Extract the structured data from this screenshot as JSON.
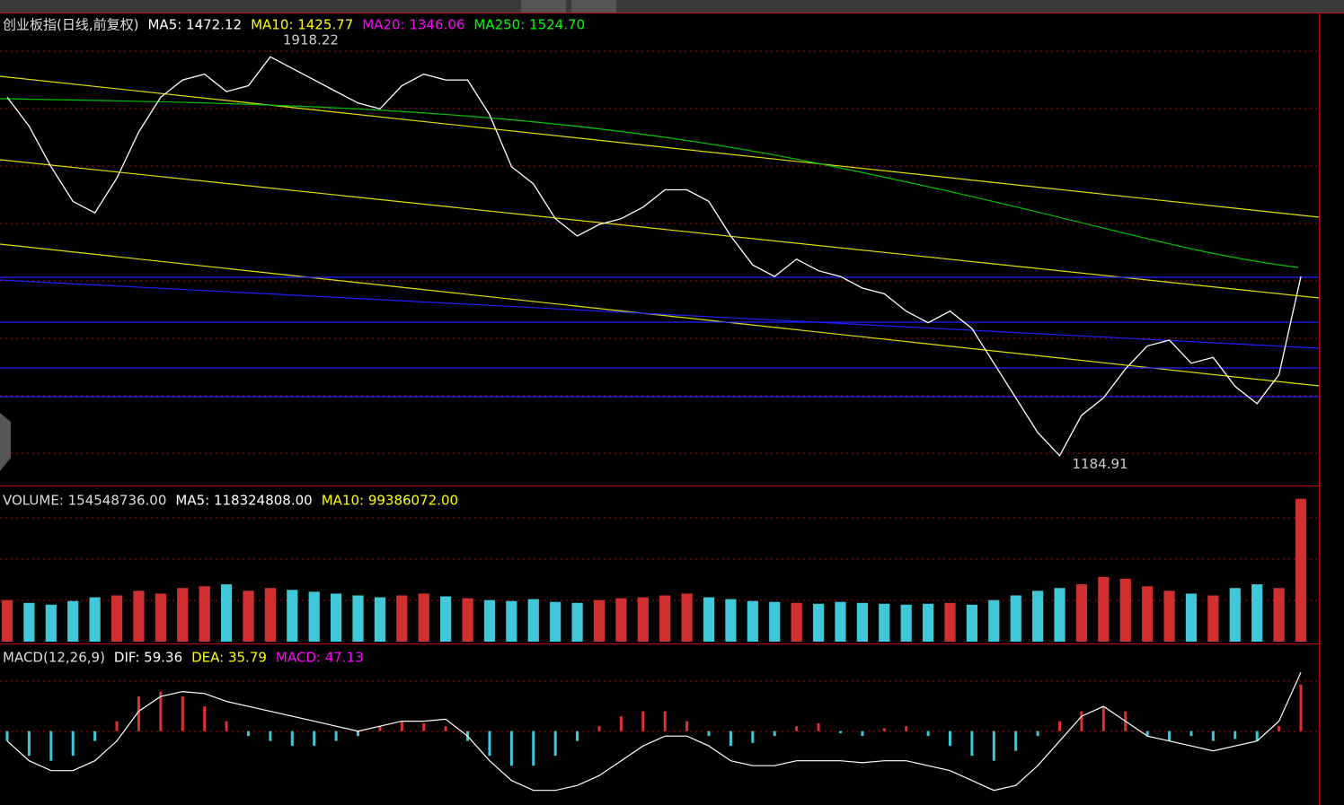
{
  "chart_data": [
    {
      "type": "line",
      "title": "创业板指(日线,前复权)",
      "legend": [
        {
          "text": "MA5: 1472.12",
          "color": "#ffffff"
        },
        {
          "text": "MA10: 1425.77",
          "color": "#ffff00"
        },
        {
          "text": "MA20: 1346.06",
          "color": "#ff00ff"
        },
        {
          "text": "MA250: 1524.70",
          "color": "#00ff00"
        }
      ],
      "high": 1918.22,
      "low": 1184.91,
      "values": [
        1820,
        1770,
        1700,
        1640,
        1620,
        1680,
        1760,
        1820,
        1850,
        1860,
        1830,
        1840,
        1890,
        1870,
        1850,
        1830,
        1810,
        1800,
        1840,
        1860,
        1850,
        1850,
        1790,
        1700,
        1670,
        1610,
        1580,
        1600,
        1610,
        1630,
        1660,
        1660,
        1640,
        1580,
        1530,
        1510,
        1540,
        1520,
        1510,
        1490,
        1480,
        1450,
        1430,
        1450,
        1420,
        1360,
        1300,
        1240,
        1200,
        1270,
        1300,
        1350,
        1390,
        1400,
        1360,
        1370,
        1320,
        1290,
        1340,
        1510
      ],
      "color": "#ffffff",
      "ylim": [
        1150,
        1965
      ]
    },
    {
      "type": "bar",
      "title": "VOLUME: 154548736.00",
      "legend": [
        {
          "text": "MA5: 118324808.00",
          "color": "#ffffff"
        },
        {
          "text": "MA10: 99386072.00",
          "color": "#ffff00"
        }
      ],
      "values": [
        45000000,
        42000000,
        40000000,
        44000000,
        48000000,
        50000000,
        55000000,
        52000000,
        58000000,
        60000000,
        62000000,
        55000000,
        58000000,
        56000000,
        54000000,
        52000000,
        50000000,
        48000000,
        50000000,
        52000000,
        49000000,
        47000000,
        45000000,
        44000000,
        46000000,
        43000000,
        42000000,
        45000000,
        47000000,
        48000000,
        50000000,
        52000000,
        48000000,
        46000000,
        44000000,
        43000000,
        42000000,
        41000000,
        43000000,
        42000000,
        41000000,
        40000000,
        41000000,
        42000000,
        40000000,
        45000000,
        50000000,
        55000000,
        58000000,
        62000000,
        70000000,
        68000000,
        60000000,
        55000000,
        52000000,
        50000000,
        58000000,
        62000000,
        58000000,
        154548736
      ],
      "ylim": [
        0,
        165000000
      ]
    },
    {
      "type": "macd",
      "title": "MACD(12,26,9)",
      "legend": [
        {
          "text": "DIF: 59.36",
          "color": "#ffffff"
        },
        {
          "text": "DEA: 35.79",
          "color": "#ffff00"
        },
        {
          "text": "MACD: 47.13",
          "color": "#ff00ff"
        }
      ],
      "values": [
        -10,
        -25,
        -30,
        -25,
        -10,
        10,
        35,
        40,
        35,
        25,
        10,
        -5,
        -10,
        -15,
        -15,
        -10,
        -5,
        5,
        10,
        8,
        5,
        -10,
        -25,
        -35,
        -35,
        -25,
        -10,
        5,
        15,
        20,
        20,
        10,
        -5,
        -15,
        -12,
        -5,
        5,
        8,
        -2,
        -5,
        3,
        5,
        -5,
        -15,
        -25,
        -30,
        -20,
        -5,
        10,
        20,
        25,
        20,
        -5,
        -10,
        -5,
        -10,
        -8,
        -10,
        5,
        47.13
      ],
      "dif": [
        -10,
        -30,
        -40,
        -40,
        -30,
        -10,
        20,
        35,
        40,
        38,
        30,
        25,
        20,
        15,
        10,
        5,
        0,
        5,
        10,
        10,
        12,
        -5,
        -30,
        -50,
        -60,
        -60,
        -55,
        -45,
        -30,
        -15,
        -5,
        -5,
        -15,
        -30,
        -35,
        -35,
        -30,
        -30,
        -30,
        -32,
        -30,
        -30,
        -35,
        -40,
        -50,
        -60,
        -55,
        -35,
        -10,
        15,
        25,
        10,
        -5,
        -10,
        -15,
        -20,
        -15,
        -10,
        10,
        59.36
      ],
      "ylim": [
        -73,
        86
      ]
    }
  ]
}
